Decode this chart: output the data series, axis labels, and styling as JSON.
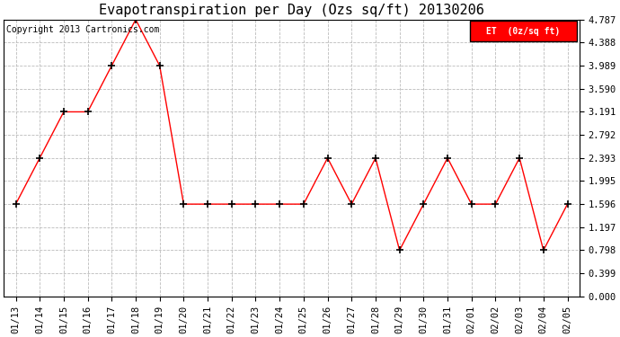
{
  "title": "Evapotranspiration per Day (Ozs sq/ft) 20130206",
  "copyright": "Copyright 2013 Cartronics.com",
  "legend_label": "ET  (0z/sq ft)",
  "x_labels": [
    "01/13",
    "01/14",
    "01/15",
    "01/16",
    "01/17",
    "01/18",
    "01/19",
    "01/20",
    "01/21",
    "01/22",
    "01/23",
    "01/24",
    "01/25",
    "01/26",
    "01/27",
    "01/28",
    "01/29",
    "01/30",
    "01/31",
    "02/01",
    "02/02",
    "02/03",
    "02/04",
    "02/05"
  ],
  "y_values": [
    1.596,
    2.393,
    3.191,
    3.191,
    3.989,
    4.787,
    3.989,
    1.596,
    1.596,
    1.596,
    1.596,
    1.596,
    1.596,
    2.393,
    1.596,
    2.393,
    0.798,
    1.596,
    2.393,
    1.596,
    1.596,
    2.393,
    0.798,
    1.596
  ],
  "y_ticks": [
    0.0,
    0.399,
    0.798,
    1.197,
    1.596,
    1.995,
    2.393,
    2.792,
    3.191,
    3.59,
    3.989,
    4.388,
    4.787
  ],
  "line_color": "red",
  "marker": "+",
  "marker_size": 6,
  "marker_color": "black",
  "background_color": "#ffffff",
  "grid_color": "#bbbbbb",
  "legend_bg": "red",
  "legend_text_color": "white",
  "title_fontsize": 11,
  "copyright_fontsize": 7,
  "tick_fontsize": 7.5,
  "ylim": [
    0.0,
    4.787
  ]
}
